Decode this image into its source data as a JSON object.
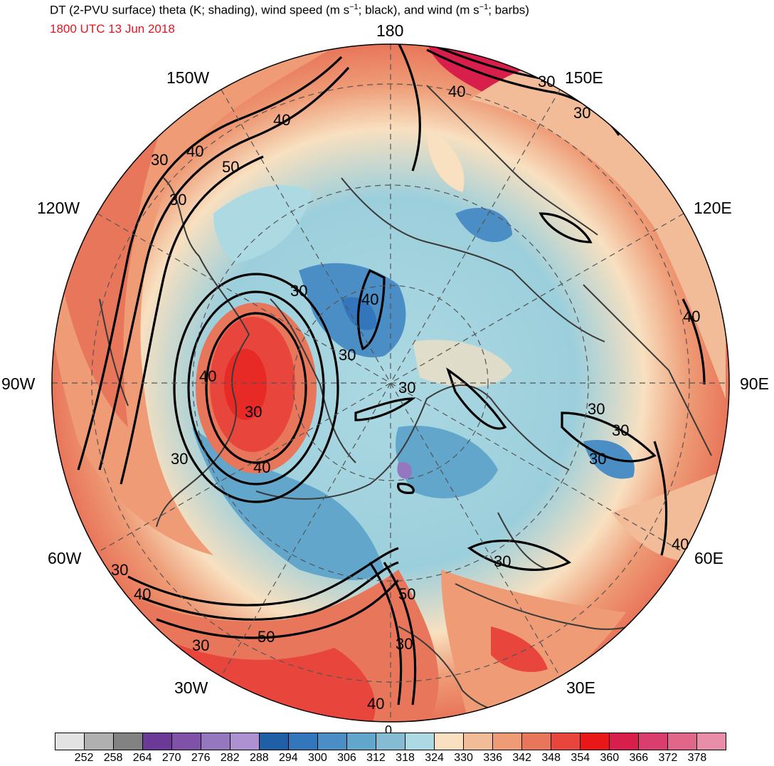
{
  "header": {
    "title_main": "DT (2-PVU surface) theta (K; shading), wind speed (m s",
    "title_exp1": "−1",
    "title_mid": "; black), and wind (m s",
    "title_exp2": "−1",
    "title_end": "; barbs)",
    "valid_time": "1800 UTC 13 Jun 2018"
  },
  "map": {
    "projection": "north-polar-stereographic",
    "longitude_labels": [
      {
        "id": "180",
        "text": "180"
      },
      {
        "id": "150e",
        "text": "150E"
      },
      {
        "id": "120e",
        "text": "120E"
      },
      {
        "id": "90e",
        "text": "90E"
      },
      {
        "id": "60e",
        "text": "60E"
      },
      {
        "id": "30e",
        "text": "30E"
      },
      {
        "id": "0",
        "text": "0"
      },
      {
        "id": "30w",
        "text": "30W"
      },
      {
        "id": "60w",
        "text": "60W"
      },
      {
        "id": "90w",
        "text": "90W"
      },
      {
        "id": "120w",
        "text": "120W"
      },
      {
        "id": "150w",
        "text": "150W"
      }
    ],
    "contour_labels": [
      "30",
      "40",
      "50",
      "30",
      "40",
      "30",
      "40",
      "30",
      "30",
      "40",
      "30",
      "30",
      "40",
      "30",
      "30",
      "40",
      "30",
      "50",
      "40",
      "50",
      "30",
      "30",
      "40",
      "30",
      "30",
      "40",
      "30",
      "40",
      "30"
    ],
    "colors": {
      "coastline": "#3a3a3a",
      "contour": "#000000",
      "gridline": "#555555",
      "title_time": "#e8141e"
    }
  },
  "colorbar": {
    "colors": [
      "#e3e3e3",
      "#b0b0b0",
      "#828282",
      "#6b3a96",
      "#7f52a8",
      "#9577c0",
      "#ae91d0",
      "#1f5fa8",
      "#3476bb",
      "#4b8ec6",
      "#62a6cb",
      "#86bcd3",
      "#acd9e2",
      "#f8e0c0",
      "#f2bc98",
      "#ee9b76",
      "#e8765a",
      "#e8463c",
      "#e81818",
      "#d81e4a",
      "#da3e6e",
      "#e0668a",
      "#e88ea8"
    ],
    "tick_labels": [
      "252",
      "258",
      "264",
      "270",
      "276",
      "282",
      "288",
      "294",
      "300",
      "306",
      "312",
      "318",
      "324",
      "330",
      "336",
      "342",
      "348",
      "354",
      "360",
      "366",
      "372",
      "378"
    ]
  }
}
